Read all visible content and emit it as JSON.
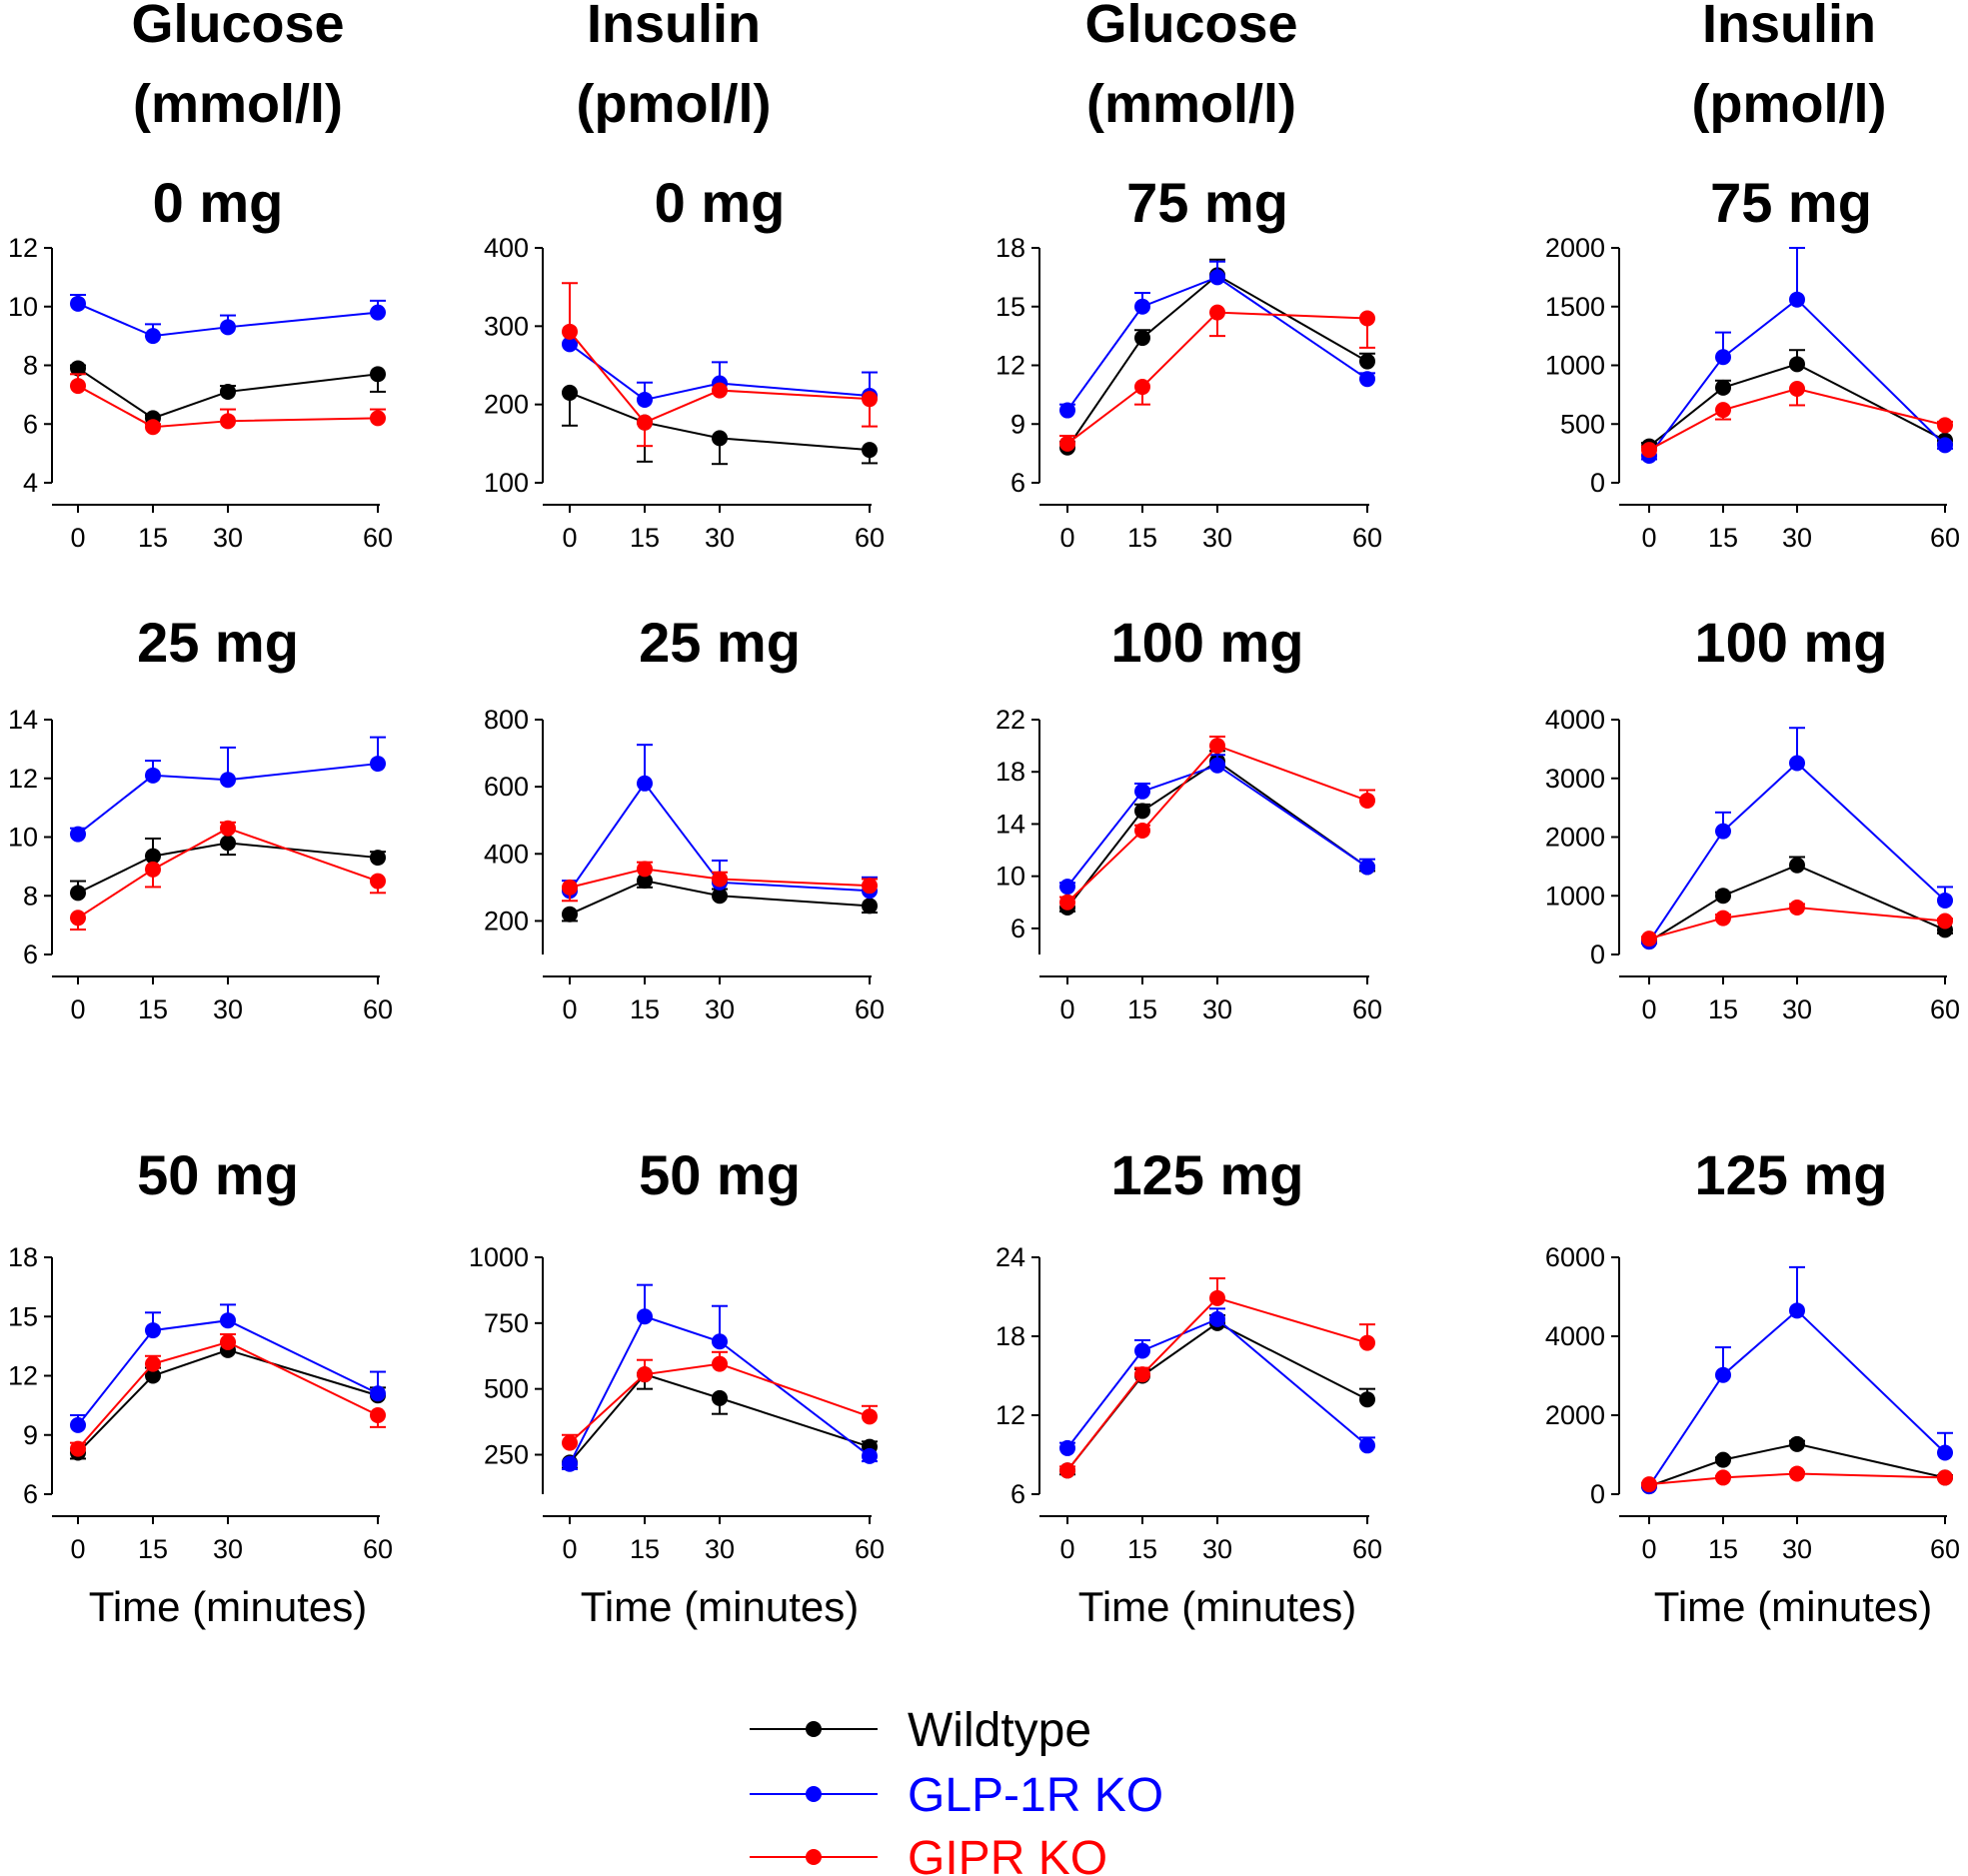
{
  "figure": {
    "column_titles": [
      {
        "line1": "Glucose",
        "line2": "(mmol/l)"
      },
      {
        "line1": "Insulin",
        "line2": "(pmol/l)"
      },
      {
        "line1": "Glucose",
        "line2": "(mmol/l)"
      },
      {
        "line1": "Insulin",
        "line2": "(pmol/l)"
      }
    ],
    "x_axis_label": "Time (minutes)",
    "legend": [
      {
        "label": "Wildtype",
        "color": "#000000"
      },
      {
        "label": "GLP-1R KO",
        "color": "#0000ff"
      },
      {
        "label": "GIPR KO",
        "color": "#ff0000"
      }
    ]
  },
  "chart_data": [
    {
      "id": "glc-0",
      "type": "line",
      "title": "0 mg",
      "xlabel": "",
      "ylabel": "Glucose (mmol/l)",
      "x": [
        0,
        15,
        30,
        60
      ],
      "xticks": [
        0,
        15,
        30,
        60
      ],
      "ylim": [
        4,
        12
      ],
      "yticks": [
        4,
        6,
        8,
        10,
        12
      ],
      "series": [
        {
          "name": "Wildtype",
          "color": "#000000",
          "values": [
            7.9,
            6.2,
            7.1,
            7.7
          ],
          "errors": [
            0.1,
            0.1,
            0.2,
            0.6
          ],
          "err_dir": [
            1,
            1,
            1,
            -1
          ]
        },
        {
          "name": "GLP-1R KO",
          "color": "#0000ff",
          "values": [
            10.1,
            9.0,
            9.3,
            9.8
          ],
          "errors": [
            0.3,
            0.4,
            0.4,
            0.4
          ],
          "err_dir": [
            1,
            1,
            1,
            1
          ]
        },
        {
          "name": "GIPR KO",
          "color": "#ff0000",
          "values": [
            7.3,
            5.9,
            6.1,
            6.2
          ],
          "errors": [
            0.4,
            0.1,
            0.4,
            0.3
          ],
          "err_dir": [
            1,
            1,
            1,
            1
          ]
        }
      ]
    },
    {
      "id": "ins-0",
      "type": "line",
      "title": "0 mg",
      "xlabel": "",
      "ylabel": "Insulin (pmol/l)",
      "x": [
        0,
        15,
        30,
        60
      ],
      "xticks": [
        0,
        15,
        30,
        60
      ],
      "ylim": [
        100,
        400
      ],
      "yticks": [
        100,
        200,
        300,
        400
      ],
      "series": [
        {
          "name": "Wildtype",
          "color": "#000000",
          "values": [
            215,
            177,
            157,
            142
          ],
          "errors": [
            42,
            50,
            33,
            17
          ],
          "err_dir": [
            -1,
            -1,
            -1,
            -1
          ]
        },
        {
          "name": "GLP-1R KO",
          "color": "#0000ff",
          "values": [
            277,
            206,
            227,
            211
          ],
          "errors": [
            0,
            22,
            27,
            30
          ],
          "err_dir": [
            1,
            1,
            1,
            1
          ]
        },
        {
          "name": "GIPR KO",
          "color": "#ff0000",
          "values": [
            293,
            177,
            218,
            207
          ],
          "errors": [
            62,
            30,
            0,
            35
          ],
          "err_dir": [
            1,
            -1,
            1,
            -1
          ]
        }
      ]
    },
    {
      "id": "glc-75",
      "type": "line",
      "title": "75 mg",
      "xlabel": "",
      "ylabel": "Glucose (mmol/l)",
      "x": [
        0,
        15,
        30,
        60
      ],
      "xticks": [
        0,
        15,
        30,
        60
      ],
      "ylim": [
        6,
        18
      ],
      "yticks": [
        6,
        9,
        12,
        15,
        18
      ],
      "series": [
        {
          "name": "Wildtype",
          "color": "#000000",
          "values": [
            7.8,
            13.4,
            16.6,
            12.2
          ],
          "errors": [
            0.3,
            0.4,
            0.8,
            0.4
          ],
          "err_dir": [
            1,
            1,
            1,
            1
          ]
        },
        {
          "name": "GLP-1R KO",
          "color": "#0000ff",
          "values": [
            9.7,
            15.0,
            16.5,
            11.3
          ],
          "errors": [
            0.3,
            0.7,
            0.8,
            0.3
          ],
          "err_dir": [
            1,
            1,
            1,
            1
          ]
        },
        {
          "name": "GIPR KO",
          "color": "#ff0000",
          "values": [
            8.0,
            10.9,
            14.7,
            14.4
          ],
          "errors": [
            0.4,
            0.9,
            1.2,
            1.5
          ],
          "err_dir": [
            1,
            -1,
            -1,
            -1
          ]
        }
      ]
    },
    {
      "id": "ins-75",
      "type": "line",
      "title": "75 mg",
      "xlabel": "",
      "ylabel": "Insulin (pmol/l)",
      "x": [
        0,
        15,
        30,
        60
      ],
      "xticks": [
        0,
        15,
        30,
        60
      ],
      "ylim": [
        0,
        2000
      ],
      "yticks": [
        0,
        500,
        1000,
        1500,
        2000
      ],
      "series": [
        {
          "name": "Wildtype",
          "color": "#000000",
          "values": [
            310,
            810,
            1010,
            360
          ],
          "errors": [
            30,
            60,
            120,
            30
          ],
          "err_dir": [
            1,
            1,
            1,
            -1
          ]
        },
        {
          "name": "GLP-1R KO",
          "color": "#0000ff",
          "values": [
            230,
            1070,
            1560,
            320
          ],
          "errors": [
            30,
            210,
            440,
            30
          ],
          "err_dir": [
            -1,
            1,
            1,
            -1
          ]
        },
        {
          "name": "GIPR KO",
          "color": "#ff0000",
          "values": [
            280,
            620,
            800,
            490
          ],
          "errors": [
            30,
            80,
            140,
            30
          ],
          "err_dir": [
            1,
            -1,
            -1,
            1
          ]
        }
      ]
    },
    {
      "id": "glc-25",
      "type": "line",
      "title": "25 mg",
      "xlabel": "",
      "ylabel": "Glucose (mmol/l)",
      "x": [
        0,
        15,
        30,
        60
      ],
      "xticks": [
        0,
        15,
        30,
        60
      ],
      "ylim": [
        6,
        14
      ],
      "yticks": [
        6,
        8,
        10,
        12,
        14
      ],
      "series": [
        {
          "name": "Wildtype",
          "color": "#000000",
          "values": [
            8.1,
            9.35,
            9.8,
            9.3
          ],
          "errors": [
            0.4,
            0.6,
            0.4,
            0.2
          ],
          "err_dir": [
            1,
            1,
            -1,
            1
          ]
        },
        {
          "name": "GLP-1R KO",
          "color": "#0000ff",
          "values": [
            10.1,
            12.1,
            11.95,
            12.5
          ],
          "errors": [
            0.2,
            0.5,
            1.1,
            0.9
          ],
          "err_dir": [
            1,
            1,
            1,
            1
          ]
        },
        {
          "name": "GIPR KO",
          "color": "#ff0000",
          "values": [
            7.25,
            8.9,
            10.3,
            8.5
          ],
          "errors": [
            0.4,
            0.6,
            0.2,
            0.4
          ],
          "err_dir": [
            -1,
            -1,
            1,
            -1
          ]
        }
      ]
    },
    {
      "id": "ins-25",
      "type": "line",
      "title": "25 mg",
      "xlabel": "",
      "ylabel": "Insulin (pmol/l)",
      "x": [
        0,
        15,
        30,
        60
      ],
      "xticks": [
        0,
        15,
        30,
        60
      ],
      "ylim": [
        100,
        800
      ],
      "yticks": [
        200,
        400,
        600,
        800
      ],
      "series": [
        {
          "name": "Wildtype",
          "color": "#000000",
          "values": [
            220,
            320,
            275,
            245
          ],
          "errors": [
            20,
            20,
            20,
            20
          ],
          "err_dir": [
            -1,
            -1,
            1,
            -1
          ]
        },
        {
          "name": "GLP-1R KO",
          "color": "#0000ff",
          "values": [
            290,
            610,
            315,
            290
          ],
          "errors": [
            30,
            115,
            65,
            40
          ],
          "err_dir": [
            1,
            1,
            1,
            1
          ]
        },
        {
          "name": "GIPR KO",
          "color": "#ff0000",
          "values": [
            300,
            355,
            325,
            305
          ],
          "errors": [
            40,
            20,
            20,
            20
          ],
          "err_dir": [
            -1,
            1,
            1,
            1
          ]
        }
      ]
    },
    {
      "id": "glc-100",
      "type": "line",
      "title": "100 mg",
      "xlabel": "",
      "ylabel": "Glucose (mmol/l)",
      "x": [
        0,
        15,
        30,
        60
      ],
      "xticks": [
        0,
        15,
        30,
        60
      ],
      "ylim": [
        4,
        22
      ],
      "yticks": [
        6,
        10,
        14,
        18,
        22
      ],
      "series": [
        {
          "name": "Wildtype",
          "color": "#000000",
          "values": [
            7.6,
            15.0,
            18.8,
            10.7
          ],
          "errors": [
            0.3,
            0.5,
            0.8,
            0.3
          ],
          "err_dir": [
            -1,
            1,
            1,
            -1
          ]
        },
        {
          "name": "GLP-1R KO",
          "color": "#0000ff",
          "values": [
            9.2,
            16.5,
            18.5,
            10.7
          ],
          "errors": [
            0.3,
            0.6,
            0.8,
            0.6
          ],
          "err_dir": [
            1,
            1,
            1,
            1
          ]
        },
        {
          "name": "GIPR KO",
          "color": "#ff0000",
          "values": [
            8.0,
            13.5,
            20.0,
            15.8
          ],
          "errors": [
            0.4,
            0.4,
            0.7,
            0.8
          ],
          "err_dir": [
            1,
            1,
            1,
            1
          ]
        }
      ]
    },
    {
      "id": "ins-100",
      "type": "line",
      "title": "100 mg",
      "xlabel": "",
      "ylabel": "Insulin (pmol/l)",
      "x": [
        0,
        15,
        30,
        60
      ],
      "xticks": [
        0,
        15,
        30,
        60
      ],
      "ylim": [
        0,
        4000
      ],
      "yticks": [
        0,
        1000,
        2000,
        3000,
        4000
      ],
      "series": [
        {
          "name": "Wildtype",
          "color": "#000000",
          "values": [
            220,
            1000,
            1520,
            420
          ],
          "errors": [
            30,
            60,
            140,
            60
          ],
          "err_dir": [
            1,
            1,
            1,
            -1
          ]
        },
        {
          "name": "GLP-1R KO",
          "color": "#0000ff",
          "values": [
            220,
            2100,
            3260,
            920
          ],
          "errors": [
            30,
            320,
            600,
            230
          ],
          "err_dir": [
            -1,
            1,
            1,
            1
          ]
        },
        {
          "name": "GIPR KO",
          "color": "#ff0000",
          "values": [
            270,
            620,
            800,
            570
          ],
          "errors": [
            30,
            60,
            60,
            40
          ],
          "err_dir": [
            1,
            1,
            1,
            1
          ]
        }
      ]
    },
    {
      "id": "glc-50",
      "type": "line",
      "title": "50 mg",
      "xlabel": "Time (minutes)",
      "ylabel": "Glucose (mmol/l)",
      "x": [
        0,
        15,
        30,
        60
      ],
      "xticks": [
        0,
        15,
        30,
        60
      ],
      "ylim": [
        6,
        18
      ],
      "yticks": [
        6,
        9,
        12,
        15,
        18
      ],
      "series": [
        {
          "name": "Wildtype",
          "color": "#000000",
          "values": [
            8.1,
            12.0,
            13.3,
            11.0
          ],
          "errors": [
            0.3,
            0.4,
            0.4,
            0.4
          ],
          "err_dir": [
            -1,
            1,
            1,
            1
          ]
        },
        {
          "name": "GLP-1R KO",
          "color": "#0000ff",
          "values": [
            9.5,
            14.3,
            14.8,
            11.1
          ],
          "errors": [
            0.5,
            0.9,
            0.8,
            1.1
          ],
          "err_dir": [
            1,
            1,
            1,
            1
          ]
        },
        {
          "name": "GIPR KO",
          "color": "#ff0000",
          "values": [
            8.3,
            12.6,
            13.7,
            10.0
          ],
          "errors": [
            0.3,
            0.4,
            0.4,
            0.6
          ],
          "err_dir": [
            1,
            1,
            1,
            -1
          ]
        }
      ]
    },
    {
      "id": "ins-50",
      "type": "line",
      "title": "50 mg",
      "xlabel": "Time (minutes)",
      "ylabel": "Insulin (pmol/l)",
      "x": [
        0,
        15,
        30,
        60
      ],
      "xticks": [
        0,
        15,
        30,
        60
      ],
      "ylim": [
        100,
        1000
      ],
      "yticks": [
        250,
        500,
        750,
        1000
      ],
      "series": [
        {
          "name": "Wildtype",
          "color": "#000000",
          "values": [
            220,
            555,
            465,
            280
          ],
          "errors": [
            20,
            55,
            60,
            20
          ],
          "err_dir": [
            -1,
            -1,
            -1,
            1
          ]
        },
        {
          "name": "GLP-1R KO",
          "color": "#0000ff",
          "values": [
            215,
            775,
            680,
            245
          ],
          "errors": [
            20,
            120,
            135,
            20
          ],
          "err_dir": [
            -1,
            1,
            1,
            -1
          ]
        },
        {
          "name": "GIPR KO",
          "color": "#ff0000",
          "values": [
            295,
            555,
            595,
            395
          ],
          "errors": [
            30,
            55,
            45,
            40
          ],
          "err_dir": [
            1,
            1,
            1,
            1
          ]
        }
      ]
    },
    {
      "id": "glc-125",
      "type": "line",
      "title": "125 mg",
      "xlabel": "Time (minutes)",
      "ylabel": "Glucose (mmol/l)",
      "x": [
        0,
        15,
        30,
        60
      ],
      "xticks": [
        0,
        15,
        30,
        60
      ],
      "ylim": [
        6,
        24
      ],
      "yticks": [
        6,
        12,
        18,
        24
      ],
      "series": [
        {
          "name": "Wildtype",
          "color": "#000000",
          "values": [
            7.8,
            15.0,
            19.0,
            13.2
          ],
          "errors": [
            0.3,
            0.5,
            0.6,
            0.8
          ],
          "err_dir": [
            -1,
            1,
            1,
            1
          ]
        },
        {
          "name": "GLP-1R KO",
          "color": "#0000ff",
          "values": [
            9.5,
            16.9,
            19.3,
            9.7
          ],
          "errors": [
            0.4,
            0.8,
            0.8,
            0.6
          ],
          "err_dir": [
            1,
            1,
            1,
            1
          ]
        },
        {
          "name": "GIPR KO",
          "color": "#ff0000",
          "values": [
            7.8,
            15.1,
            20.9,
            17.5
          ],
          "errors": [
            0.3,
            0.5,
            1.5,
            1.4
          ],
          "err_dir": [
            1,
            1,
            1,
            1
          ]
        }
      ]
    },
    {
      "id": "ins-125",
      "type": "line",
      "title": "125 mg",
      "xlabel": "Time (minutes)",
      "ylabel": "Insulin (pmol/l)",
      "x": [
        0,
        15,
        30,
        60
      ],
      "xticks": [
        0,
        15,
        30,
        60
      ],
      "ylim": [
        0,
        6000
      ],
      "yticks": [
        0,
        2000,
        4000,
        6000
      ],
      "series": [
        {
          "name": "Wildtype",
          "color": "#000000",
          "values": [
            200,
            870,
            1270,
            420
          ],
          "errors": [
            30,
            60,
            80,
            60
          ],
          "err_dir": [
            1,
            1,
            1,
            1
          ]
        },
        {
          "name": "GLP-1R KO",
          "color": "#0000ff",
          "values": [
            200,
            3020,
            4650,
            1050
          ],
          "errors": [
            30,
            700,
            1100,
            500
          ],
          "err_dir": [
            -1,
            1,
            1,
            1
          ]
        },
        {
          "name": "GIPR KO",
          "color": "#ff0000",
          "values": [
            250,
            420,
            520,
            420
          ],
          "errors": [
            30,
            40,
            40,
            40
          ],
          "err_dir": [
            1,
            1,
            1,
            1
          ]
        }
      ]
    }
  ]
}
